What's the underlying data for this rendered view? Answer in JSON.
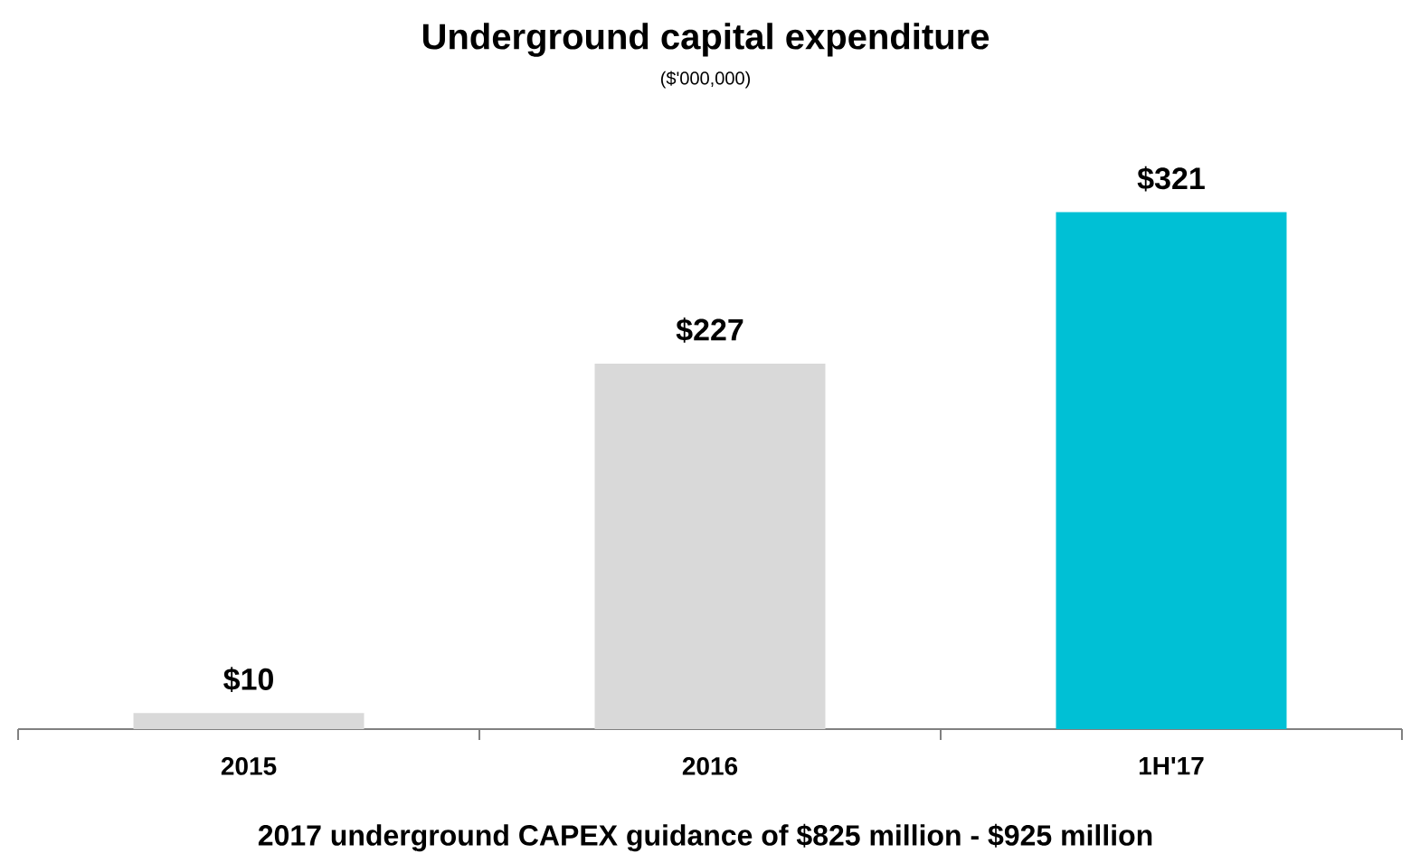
{
  "chart_data": {
    "type": "bar",
    "title": "Underground capital expenditure",
    "subtitle": "($'000,000)",
    "categories": [
      "2015",
      "2016",
      "1H'17"
    ],
    "values": [
      10,
      227,
      321
    ],
    "colors": [
      "#d9d9d9",
      "#d9d9d9",
      "#00c0d5"
    ],
    "value_labels": [
      "$10",
      "$227",
      "$321"
    ],
    "annotations": [
      "2017 underground CAPEX guidance of $825 million - $925 million"
    ]
  }
}
